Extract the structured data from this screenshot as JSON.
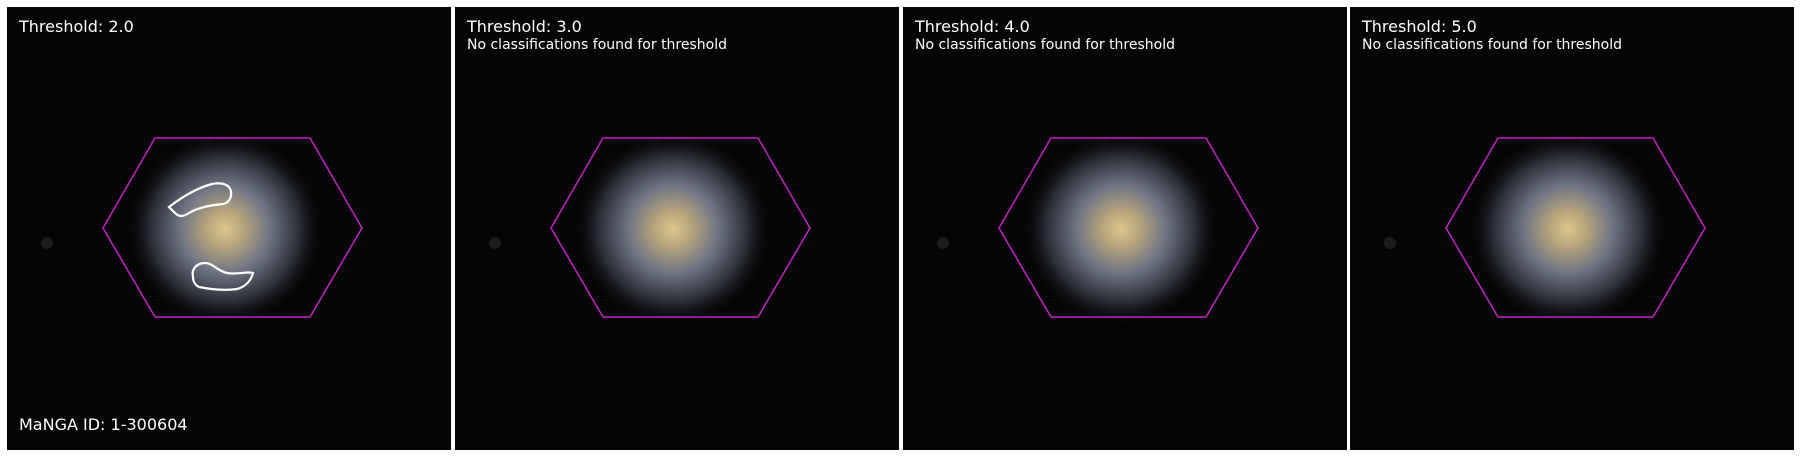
{
  "panels": [
    {
      "title": "Threshold: 2.0",
      "note": "",
      "footer": "MaNGA ID: 1-300604",
      "has_contours": true
    },
    {
      "title": "Threshold: 3.0",
      "note": "No classifications found for threshold",
      "footer": "",
      "has_contours": false
    },
    {
      "title": "Threshold: 4.0",
      "note": "No classifications found for threshold",
      "footer": "",
      "has_contours": false
    },
    {
      "title": "Threshold: 5.0",
      "note": "No classifications found for threshold",
      "footer": "",
      "has_contours": false
    }
  ],
  "colors": {
    "background": "#050505",
    "ifu_hexagon": "#c81ec8",
    "contour": "#ffffff",
    "galaxy_core": "#d9c48a",
    "galaxy_halo": "#7f8aa0"
  }
}
